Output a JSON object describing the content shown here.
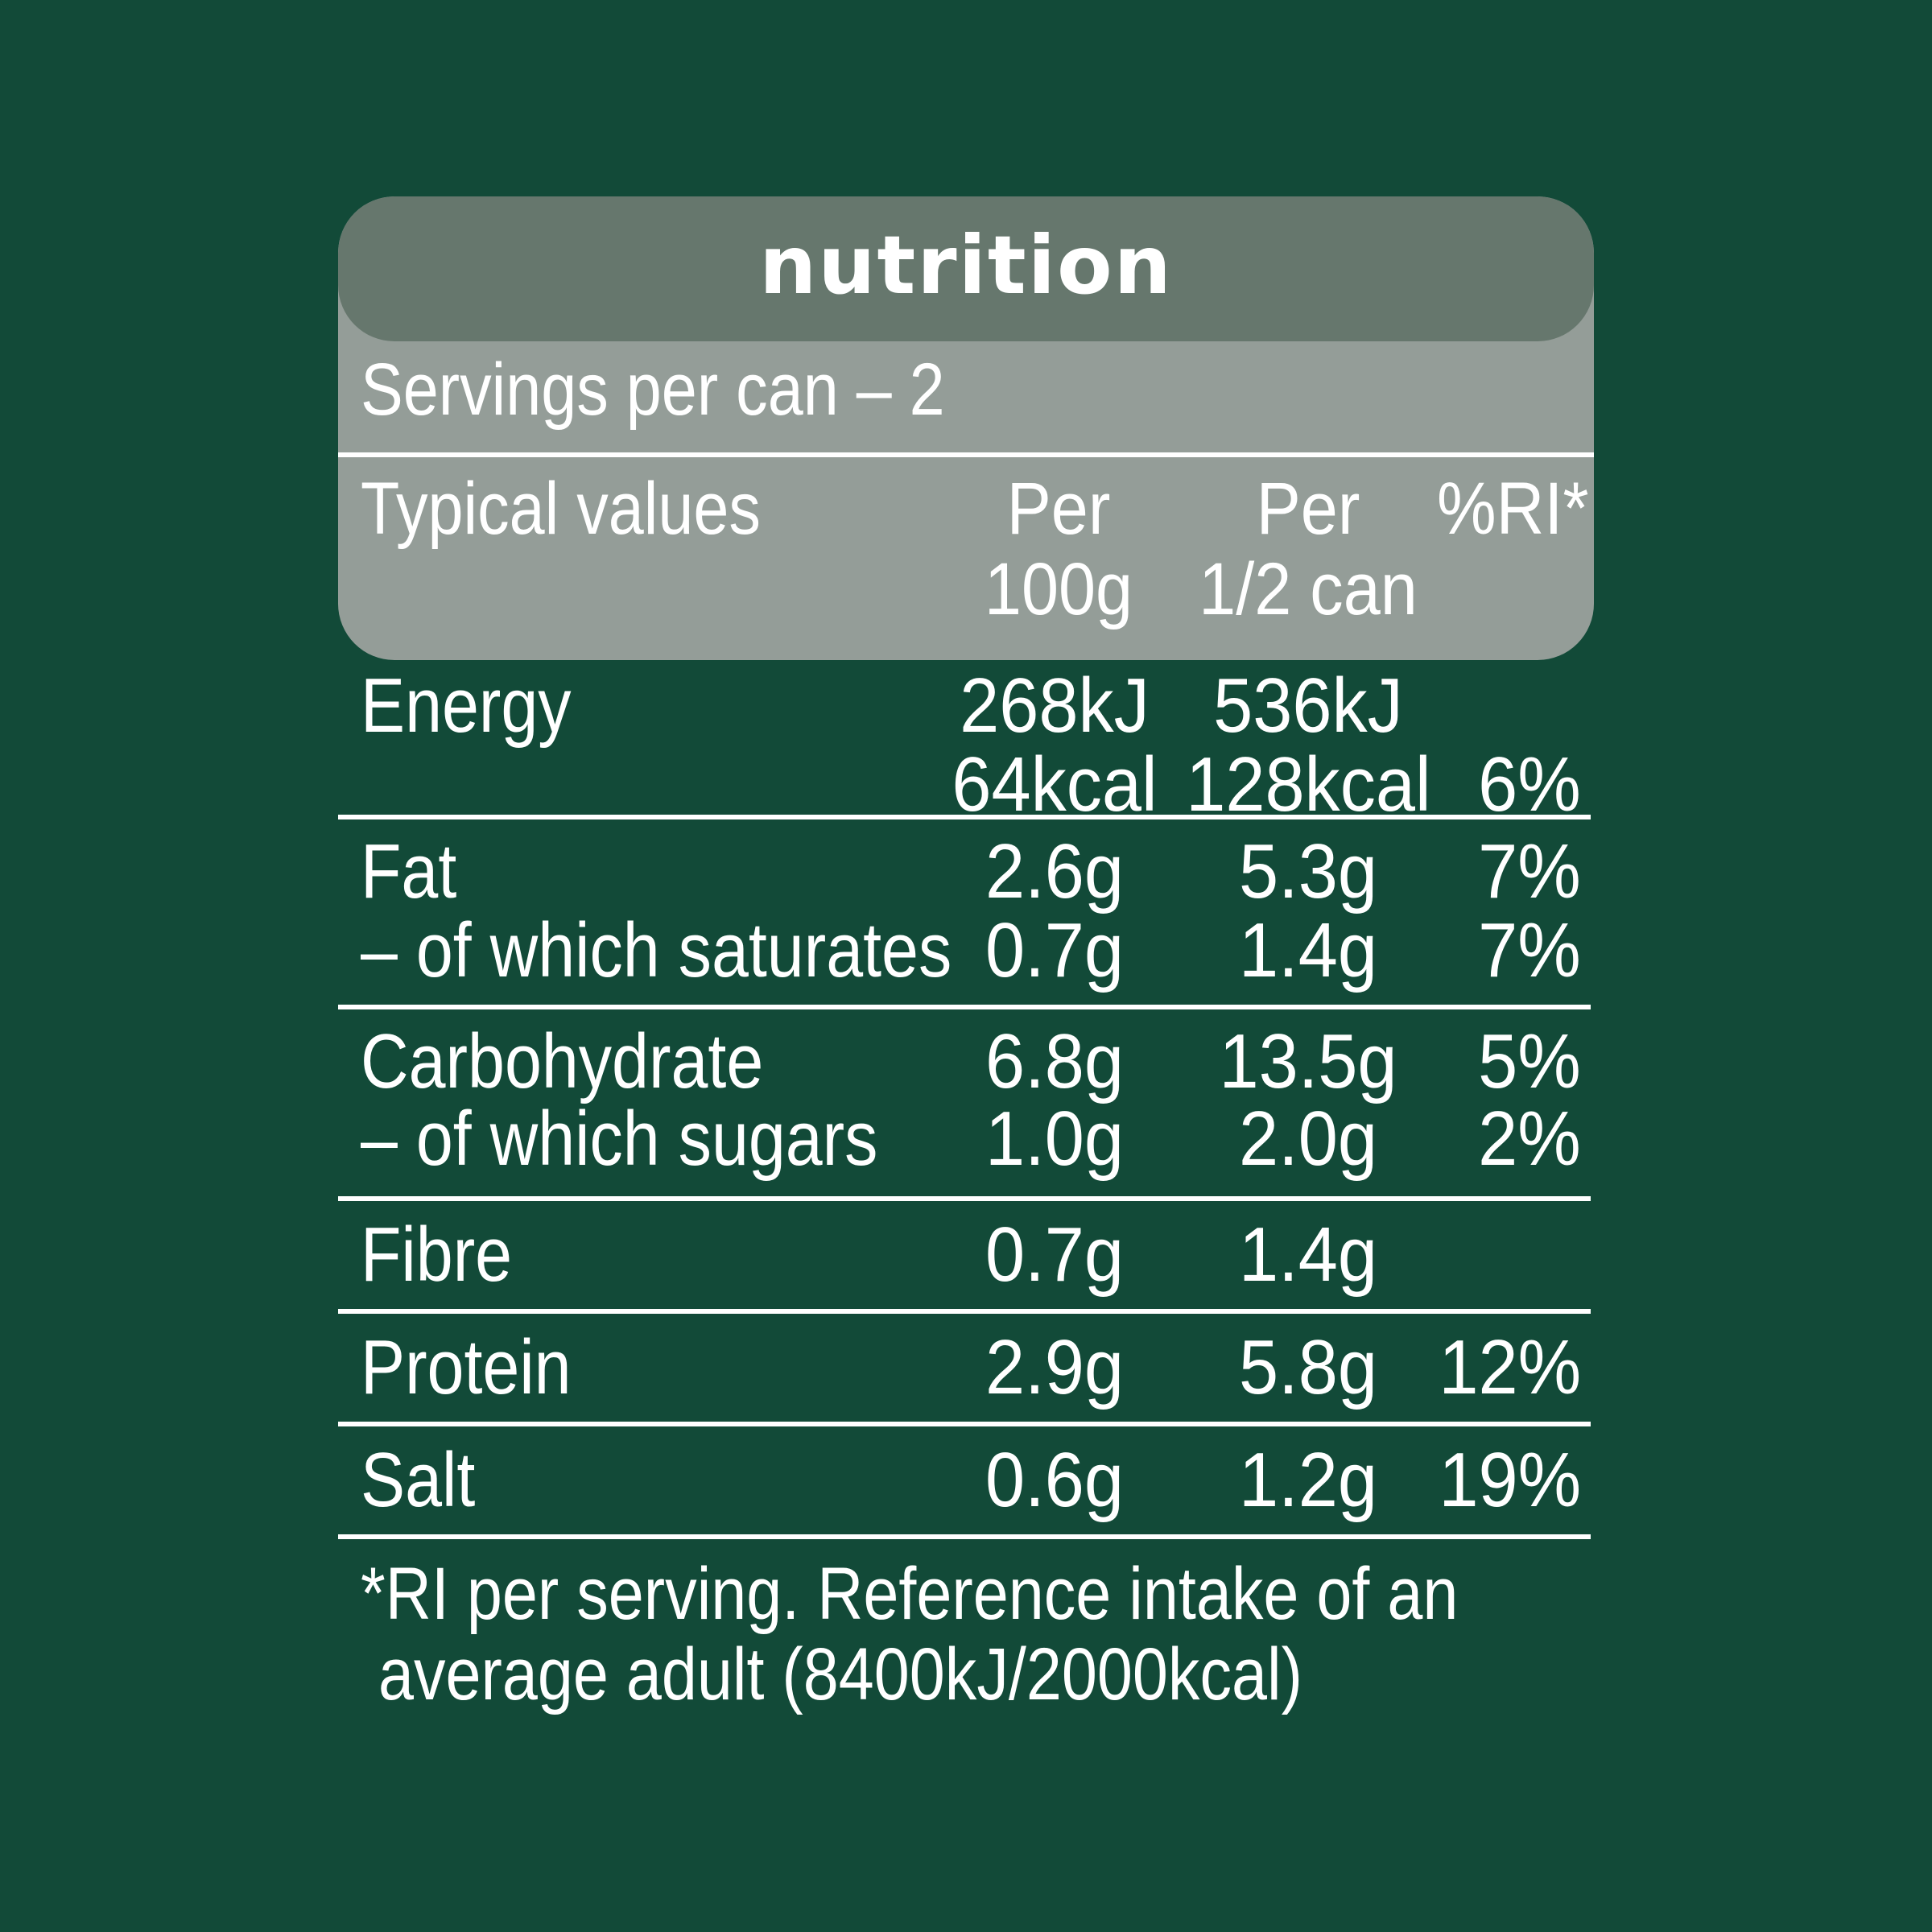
{
  "label": {
    "title": "nutrition",
    "servings": "Servings per can – 2",
    "headers": {
      "typical": "Typical values",
      "per100_line1": "Per",
      "per100_line2": "100g",
      "perhalf_line1": "Per",
      "perhalf_line2": "1/2 can",
      "ri": "%RI*"
    }
  },
  "rows": {
    "energy": {
      "name": "Energy",
      "per100_kj": "268kJ",
      "per100_kcal": "64kcal",
      "perhalf_kj": "536kJ",
      "perhalf_kcal": "128kcal",
      "ri": "6%"
    },
    "fat": {
      "name": "Fat",
      "per100": "2.6g",
      "perhalf": "5.3g",
      "ri": "7%"
    },
    "saturates": {
      "name": "– of which saturates",
      "per100": "0.7g",
      "perhalf": "1.4g",
      "ri": "7%"
    },
    "carbohydrate": {
      "name": "Carbohydrate",
      "per100": "6.8g",
      "perhalf": "13.5g",
      "ri": "5%"
    },
    "sugars": {
      "name": "– of which sugars",
      "per100": "1.0g",
      "perhalf": "2.0g",
      "ri": "2%"
    },
    "fibre": {
      "name": "Fibre",
      "per100": "0.7g",
      "perhalf": "1.4g",
      "ri": ""
    },
    "protein": {
      "name": "Protein",
      "per100": "2.9g",
      "perhalf": "5.8g",
      "ri": "12%"
    },
    "salt": {
      "name": "Salt",
      "per100": "0.6g",
      "perhalf": "1.2g",
      "ri": "19%"
    }
  },
  "footnote": {
    "line1": "*RI per serving. Reference intake of an",
    "line2": " average adult (8400kJ/2000kcal)"
  },
  "colors": {
    "background": "#124a38",
    "title_bar": "#66776d",
    "header_box": "#949d98",
    "text": "#ffffff"
  }
}
